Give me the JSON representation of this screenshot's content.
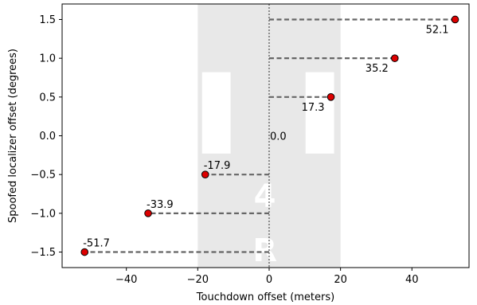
{
  "chart_data": {
    "type": "scatter",
    "title": "",
    "xlabel": "Touchdown offset (meters)",
    "ylabel": "Spoofed localizer offset (degrees)",
    "xlim": [
      -58,
      56
    ],
    "ylim": [
      -1.7,
      1.7
    ],
    "x_ticks": [
      -40,
      -20,
      0,
      20,
      40
    ],
    "x_tick_labels": [
      "−40",
      "−20",
      "0",
      "20",
      "40"
    ],
    "y_ticks": [
      -1.5,
      -1.0,
      -0.5,
      0.0,
      0.5,
      1.0,
      1.5
    ],
    "y_tick_labels": [
      "−1.5",
      "−1.0",
      "−0.5",
      "0.0",
      "0.5",
      "1.0",
      "1.5"
    ],
    "runway_band": {
      "x_range": [
        -20,
        20
      ],
      "color": "#e8e8e8",
      "marking_text": [
        "4",
        "R"
      ]
    },
    "points": [
      {
        "x": -51.7,
        "y": -1.5,
        "label": "-51.7"
      },
      {
        "x": -33.9,
        "y": -1.0,
        "label": "-33.9"
      },
      {
        "x": -17.9,
        "y": -0.5,
        "label": "-17.9"
      },
      {
        "x": 0.0,
        "y": 0.0,
        "label": "0.0"
      },
      {
        "x": 17.3,
        "y": 0.5,
        "label": "17.3"
      },
      {
        "x": 35.2,
        "y": 1.0,
        "label": "35.2"
      },
      {
        "x": 52.1,
        "y": 1.5,
        "label": "52.1"
      }
    ],
    "marker_color": "#dd0000",
    "line_color": "#666666",
    "centerline": 0,
    "grid": false,
    "legend": "none"
  }
}
